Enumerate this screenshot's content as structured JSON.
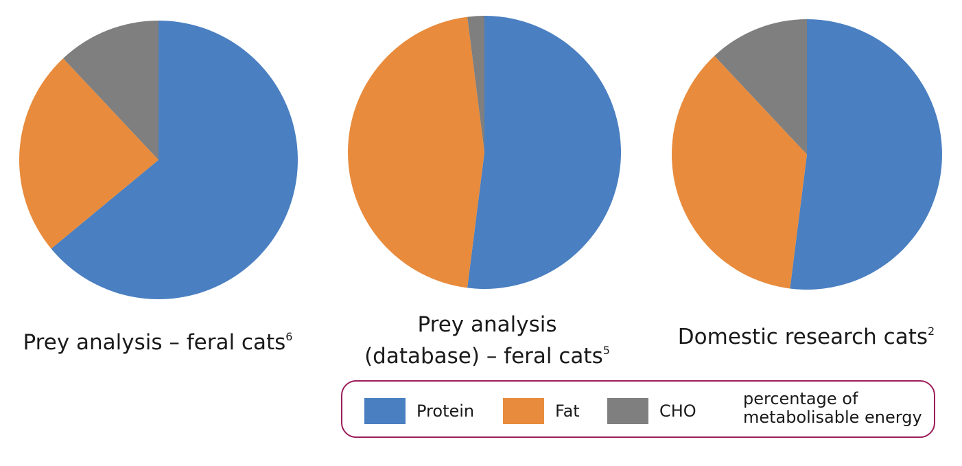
{
  "chart_data": [
    {
      "type": "pie",
      "title": "Prey analysis – feral cats",
      "title_superscript": "6",
      "categories": [
        "Protein",
        "Fat",
        "CHO"
      ],
      "values": [
        64,
        24,
        12
      ],
      "colors": [
        "#4a7fc1",
        "#e88b3c",
        "#7f7f7f"
      ]
    },
    {
      "type": "pie",
      "title_line1": "Prey analysis",
      "title_line2": "(database) – feral cats",
      "title_superscript": "5",
      "categories": [
        "Protein",
        "Fat",
        "CHO"
      ],
      "values": [
        52,
        46,
        2
      ],
      "colors": [
        "#4a7fc1",
        "#e88b3c",
        "#7f7f7f"
      ]
    },
    {
      "type": "pie",
      "title": "Domestic research cats",
      "title_superscript": "2",
      "categories": [
        "Protein",
        "Fat",
        "CHO"
      ],
      "values": [
        52,
        36,
        12
      ],
      "colors": [
        "#4a7fc1",
        "#e88b3c",
        "#7f7f7f"
      ]
    }
  ],
  "legend": {
    "items": [
      {
        "label": "Protein",
        "color": "#4a7fc1"
      },
      {
        "label": "Fat",
        "color": "#e88b3c"
      },
      {
        "label": "CHO",
        "color": "#7f7f7f"
      }
    ],
    "note_line1": "percentage of",
    "note_line2": "metabolisable energy",
    "border_color": "#9c1d5a"
  }
}
